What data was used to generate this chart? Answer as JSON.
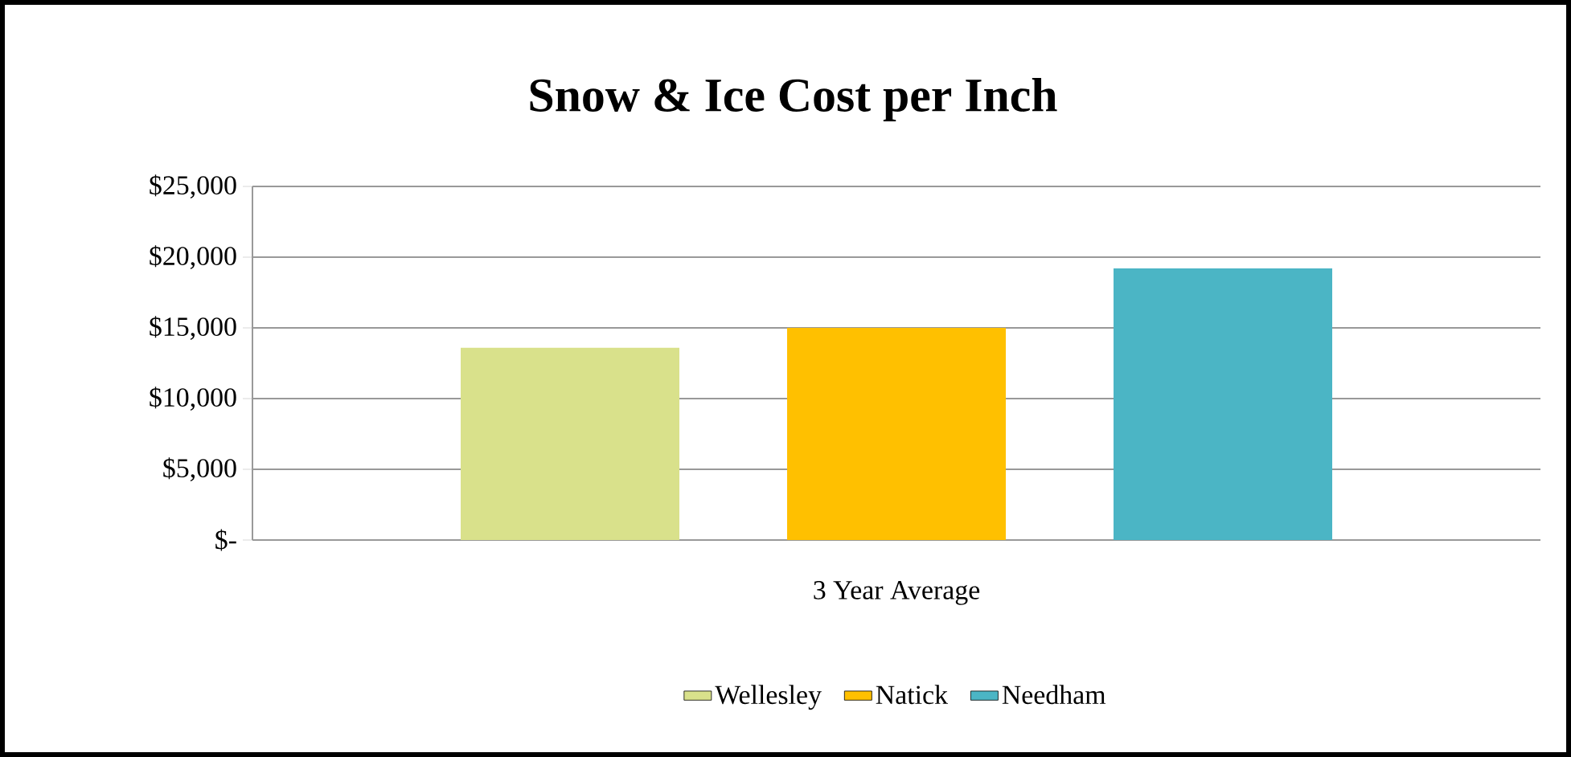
{
  "chart_data": {
    "type": "bar",
    "title": "Snow & Ice Cost per Inch",
    "categories": [
      "3 Year Average"
    ],
    "series": [
      {
        "name": "Wellesley",
        "color": "#d9e18b",
        "values": [
          13600
        ]
      },
      {
        "name": "Natick",
        "color": "#ffc000",
        "values": [
          15000
        ]
      },
      {
        "name": "Needham",
        "color": "#4bb5c5",
        "values": [
          19200
        ]
      }
    ],
    "ylim": [
      0,
      25000
    ],
    "yticks": [
      {
        "value": 0,
        "label": "$-"
      },
      {
        "value": 5000,
        "label": "$5,000"
      },
      {
        "value": 10000,
        "label": "$10,000"
      },
      {
        "value": 15000,
        "label": "$15,000"
      },
      {
        "value": 20000,
        "label": "$20,000"
      },
      {
        "value": 25000,
        "label": "$25,000"
      }
    ],
    "grid": "y",
    "legend": "bottom"
  }
}
